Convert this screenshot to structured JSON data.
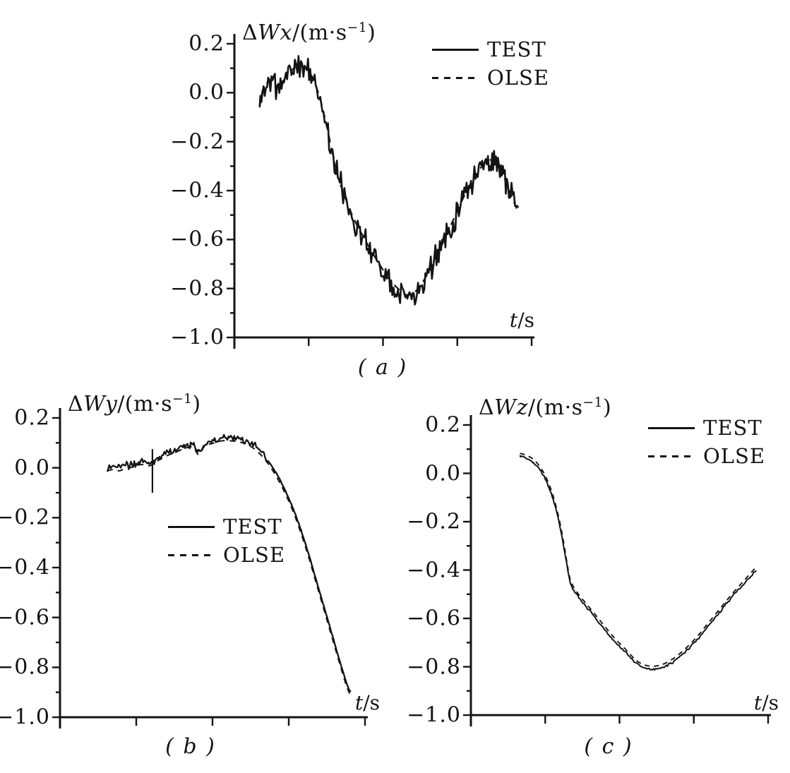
{
  "figure": {
    "background": "#ffffff",
    "ink": "#141414",
    "description": "Scanned journal figure: wind estimation errors vs time, TEST vs OLSE, three components"
  },
  "chart_data": [
    {
      "id": "a",
      "type": "line",
      "title": {
        "delta": "Δ",
        "var": "Wx",
        "unit_open": "/(m·s",
        "unit_exp": "−1",
        "unit_close": ")"
      },
      "ylabel_text": "ΔWx/(m·s−1)",
      "xlabel": {
        "var": "t",
        "unit": "/s"
      },
      "caption": "( a )",
      "ylim": [
        -1.0,
        0.2
      ],
      "y_ticks": [
        "0.2",
        "0.0",
        "−0.2",
        "−0.4",
        "−0.6",
        "−0.8",
        "−1.0"
      ],
      "x_ticks": {
        "count": 4,
        "labels": []
      },
      "series": [
        {
          "name": "TEST",
          "style": "solid-noisy"
        },
        {
          "name": "OLSE",
          "style": "dashed"
        }
      ],
      "test_noise": 0.045,
      "noise_taper_t": null,
      "noise_seed": 11,
      "olse_offset": 0,
      "points": [
        [
          0.085,
          -0.06
        ],
        [
          0.095,
          0.01
        ],
        [
          0.11,
          0.04
        ],
        [
          0.125,
          0.05
        ],
        [
          0.14,
          0.03
        ],
        [
          0.155,
          0.02
        ],
        [
          0.17,
          0.06
        ],
        [
          0.185,
          0.08
        ],
        [
          0.2,
          0.1
        ],
        [
          0.22,
          0.11
        ],
        [
          0.24,
          0.1
        ],
        [
          0.255,
          0.08
        ],
        [
          0.27,
          0.04
        ],
        [
          0.285,
          -0.01
        ],
        [
          0.3,
          -0.08
        ],
        [
          0.315,
          -0.16
        ],
        [
          0.33,
          -0.25
        ],
        [
          0.345,
          -0.33
        ],
        [
          0.37,
          -0.42
        ],
        [
          0.4,
          -0.51
        ],
        [
          0.43,
          -0.58
        ],
        [
          0.46,
          -0.645
        ],
        [
          0.49,
          -0.705
        ],
        [
          0.52,
          -0.76
        ],
        [
          0.55,
          -0.8
        ],
        [
          0.575,
          -0.825
        ],
        [
          0.6,
          -0.82
        ],
        [
          0.625,
          -0.79
        ],
        [
          0.65,
          -0.74
        ],
        [
          0.68,
          -0.67
        ],
        [
          0.71,
          -0.59
        ],
        [
          0.74,
          -0.51
        ],
        [
          0.77,
          -0.43
        ],
        [
          0.8,
          -0.36
        ],
        [
          0.83,
          -0.305
        ],
        [
          0.86,
          -0.275
        ],
        [
          0.88,
          -0.285
        ],
        [
          0.9,
          -0.325
        ],
        [
          0.92,
          -0.385
        ],
        [
          0.94,
          -0.445
        ],
        [
          0.955,
          -0.49
        ]
      ]
    },
    {
      "id": "b",
      "type": "line",
      "title": {
        "delta": "Δ",
        "var": "Wy",
        "unit_open": "/(m·s",
        "unit_exp": "−1",
        "unit_close": ")"
      },
      "ylabel_text": "ΔWy/(m·s−1)",
      "xlabel": {
        "var": "t",
        "unit": "/s"
      },
      "caption": "( b )",
      "ylim": [
        -1.0,
        0.2
      ],
      "y_ticks": [
        "0.2",
        "0.0",
        "−0.2",
        "−0.4",
        "−0.6",
        "−0.8",
        "−1.0"
      ],
      "x_ticks": {
        "count": 4,
        "labels": []
      },
      "series": [
        {
          "name": "TEST",
          "style": "solid-noisy"
        },
        {
          "name": "OLSE",
          "style": "dashed"
        }
      ],
      "test_noise": 0.013,
      "noise_taper_t": 0.68,
      "noise_seed": 23,
      "olse_offset": -0.012,
      "spike": {
        "t": 0.303,
        "v_from": -0.1,
        "v_to": 0.075
      },
      "points": [
        [
          0.155,
          0.0
        ],
        [
          0.175,
          0.005
        ],
        [
          0.195,
          0.0
        ],
        [
          0.215,
          0.01
        ],
        [
          0.24,
          0.015
        ],
        [
          0.265,
          0.025
        ],
        [
          0.29,
          0.02
        ],
        [
          0.303,
          0.025
        ],
        [
          0.32,
          0.04
        ],
        [
          0.35,
          0.06
        ],
        [
          0.38,
          0.075
        ],
        [
          0.41,
          0.09
        ],
        [
          0.435,
          0.095
        ],
        [
          0.455,
          0.065
        ],
        [
          0.475,
          0.1
        ],
        [
          0.5,
          0.11
        ],
        [
          0.53,
          0.12
        ],
        [
          0.56,
          0.12
        ],
        [
          0.59,
          0.115
        ],
        [
          0.615,
          0.105
        ],
        [
          0.64,
          0.085
        ],
        [
          0.665,
          0.055
        ],
        [
          0.69,
          0.015
        ],
        [
          0.715,
          -0.035
        ],
        [
          0.74,
          -0.095
        ],
        [
          0.765,
          -0.165
        ],
        [
          0.79,
          -0.25
        ],
        [
          0.815,
          -0.345
        ],
        [
          0.84,
          -0.45
        ],
        [
          0.865,
          -0.555
        ],
        [
          0.89,
          -0.66
        ],
        [
          0.915,
          -0.765
        ],
        [
          0.94,
          -0.865
        ],
        [
          0.953,
          -0.9
        ]
      ]
    },
    {
      "id": "c",
      "type": "line",
      "title": {
        "delta": "Δ",
        "var": "Wz",
        "unit_open": "/(m·s",
        "unit_exp": "−1",
        "unit_close": ")"
      },
      "ylabel_text": "ΔWz/(m·s−1)",
      "xlabel": {
        "var": "t",
        "unit": "/s"
      },
      "caption": "( c )",
      "ylim": [
        -1.0,
        0.2
      ],
      "y_ticks": [
        "0.2",
        "0.0",
        "−0.2",
        "−0.4",
        "−0.6",
        "−0.8",
        "−1.0"
      ],
      "x_ticks": {
        "count": 4,
        "labels": []
      },
      "series": [
        {
          "name": "TEST",
          "style": "solid"
        },
        {
          "name": "OLSE",
          "style": "dashed"
        }
      ],
      "test_noise": 0.004,
      "noise_taper_t": null,
      "noise_seed": 37,
      "olse_offset": 0.013,
      "points": [
        [
          0.165,
          0.07
        ],
        [
          0.19,
          0.06
        ],
        [
          0.215,
          0.04
        ],
        [
          0.24,
          0.0
        ],
        [
          0.26,
          -0.05
        ],
        [
          0.28,
          -0.12
        ],
        [
          0.3,
          -0.22
        ],
        [
          0.315,
          -0.32
        ],
        [
          0.33,
          -0.43
        ],
        [
          0.34,
          -0.47
        ],
        [
          0.36,
          -0.51
        ],
        [
          0.4,
          -0.57
        ],
        [
          0.44,
          -0.63
        ],
        [
          0.48,
          -0.69
        ],
        [
          0.52,
          -0.74
        ],
        [
          0.56,
          -0.79
        ],
        [
          0.6,
          -0.81
        ],
        [
          0.64,
          -0.805
        ],
        [
          0.68,
          -0.78
        ],
        [
          0.72,
          -0.74
        ],
        [
          0.76,
          -0.69
        ],
        [
          0.8,
          -0.63
        ],
        [
          0.84,
          -0.57
        ],
        [
          0.88,
          -0.51
        ],
        [
          0.92,
          -0.455
        ],
        [
          0.96,
          -0.4
        ]
      ]
    }
  ]
}
